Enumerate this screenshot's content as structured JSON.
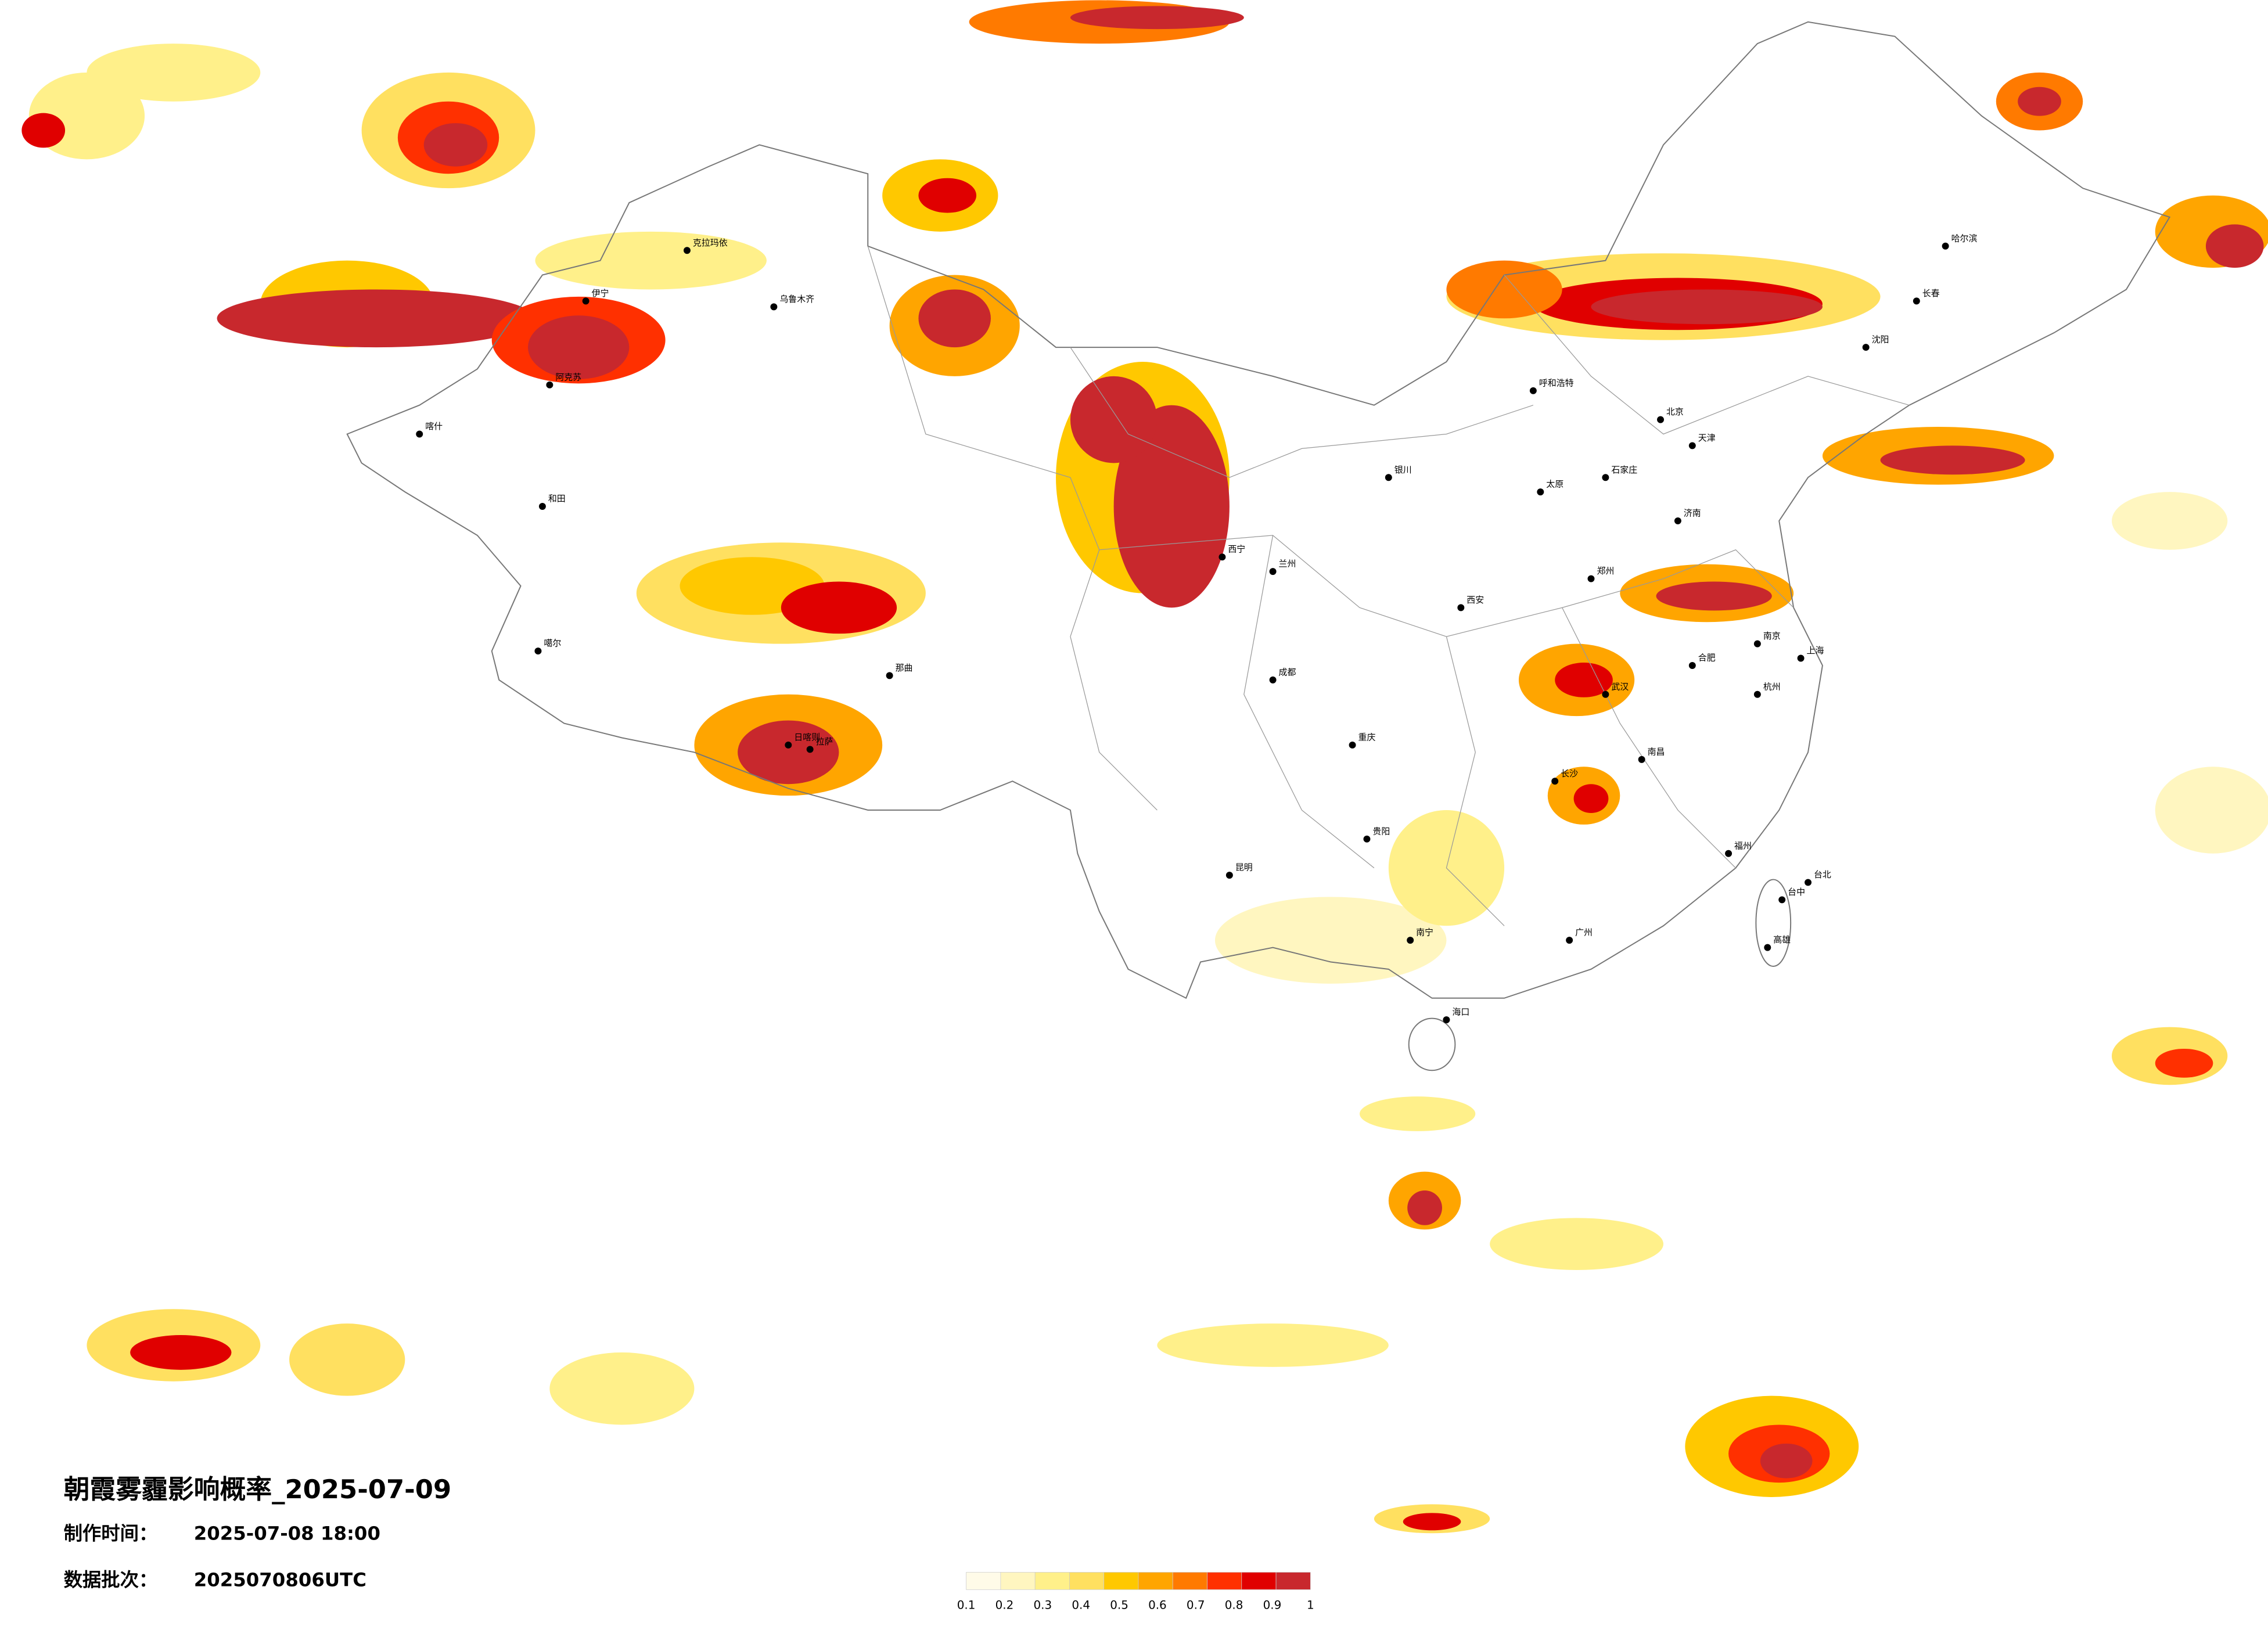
{
  "title": "朝霞雾霾影响概率_2025-07-09",
  "production_time_label": "制作时间：",
  "production_time": "2025-07-08 18:00",
  "batch_label": "数据批次：",
  "batch": "2025070806UTC",
  "legend": {
    "labels": [
      0.1,
      0.2,
      0.3,
      0.4,
      0.5,
      0.6,
      0.7,
      0.8,
      0.9,
      1
    ],
    "colors": [
      "#fffbe8",
      "#fff6c0",
      "#fff08a",
      "#ffe060",
      "#ffc800",
      "#ffa500",
      "#ff7a00",
      "#ff3000",
      "#e00000",
      "#c8282d"
    ]
  },
  "cities": [
    "克拉玛依",
    "乌鲁木齐",
    "伊宁",
    "阿克苏",
    "喀什",
    "和田",
    "噶尔",
    "拉萨",
    "日喀则",
    "那曲",
    "哈尔滨",
    "长春",
    "沈阳",
    "呼和浩特",
    "北京",
    "天津",
    "石家庄",
    "太原",
    "济南",
    "银川",
    "兰州",
    "西宁",
    "西安",
    "郑州",
    "南京",
    "上海",
    "杭州",
    "武汉",
    "合肥",
    "长沙",
    "南昌",
    "福州",
    "广州",
    "南宁",
    "海口",
    "贵阳",
    "昆明",
    "成都",
    "重庆",
    "台北",
    "台中",
    "高雄"
  ]
}
